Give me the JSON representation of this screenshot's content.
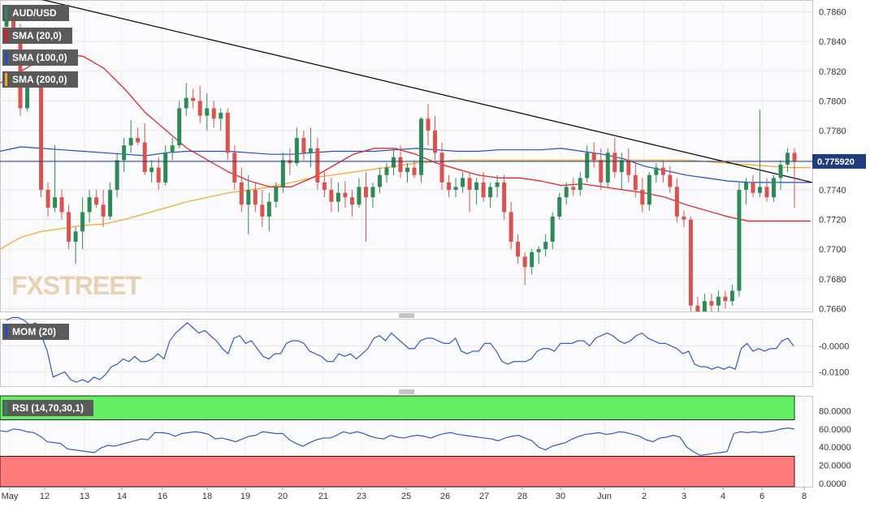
{
  "instrument": "AUD/USD",
  "watermark": "FXSTREET",
  "colors": {
    "up": "#2e8b57",
    "down": "#d9534f",
    "sma20": "#e8161b",
    "sma100": "#1f4fbf",
    "sma200": "#f5a623",
    "trendline": "#000000",
    "momentum": "#1f4fbf",
    "rsi": "#1f4fbf",
    "rsi_overbought_zone": "#64ee64",
    "rsi_oversold_zone": "#ff7a7a",
    "price_tag": "#1f3d7a"
  },
  "main_panel": {
    "indicators": [
      {
        "label": "SMA (20,0)",
        "color": "#e8161b"
      },
      {
        "label": "SMA (100,0)",
        "color": "#1f4fbf"
      },
      {
        "label": "SMA (200,0)",
        "color": "#f5a623"
      }
    ],
    "price_tag": "0.775920"
  },
  "mom_panel": {
    "label": "MOM (20)"
  },
  "rsi_panel": {
    "label": "RSI (14,70,30,1)"
  },
  "chart_data": [
    {
      "type": "candlestick",
      "title": "AUD/USD",
      "y_ticks": [
        "0.7860",
        "0.7840",
        "0.7820",
        "0.7800",
        "0.7780",
        "0.7760",
        "0.7740",
        "0.7720",
        "0.7700",
        "0.7680",
        "0.7660"
      ],
      "ylim": [
        0.7658,
        0.7868
      ],
      "x_ticks": [
        "May",
        "12",
        "13",
        "14",
        "16",
        "18",
        "19",
        "20",
        "21",
        "23",
        "25",
        "26",
        "27",
        "28",
        "30",
        "Jun",
        "2",
        "3",
        "4",
        "6",
        "8"
      ],
      "last_price": 0.77592,
      "candles": [
        [
          0.785,
          0.786,
          0.7848,
          0.7858
        ],
        [
          0.7858,
          0.7862,
          0.7844,
          0.7848
        ],
        [
          0.7848,
          0.7852,
          0.779,
          0.7795
        ],
        [
          0.7795,
          0.782,
          0.7793,
          0.7815
        ],
        [
          0.7815,
          0.7818,
          0.781,
          0.7812
        ],
        [
          0.7812,
          0.7814,
          0.7735,
          0.774
        ],
        [
          0.774,
          0.7745,
          0.7722,
          0.7728
        ],
        [
          0.7728,
          0.777,
          0.7725,
          0.7735
        ],
        [
          0.7735,
          0.774,
          0.772,
          0.7725
        ],
        [
          0.7725,
          0.773,
          0.77,
          0.7705
        ],
        [
          0.7705,
          0.7715,
          0.769,
          0.7712
        ],
        [
          0.7712,
          0.7735,
          0.77,
          0.7725
        ],
        [
          0.7725,
          0.774,
          0.7718,
          0.7735
        ],
        [
          0.7735,
          0.774,
          0.7728,
          0.773
        ],
        [
          0.773,
          0.774,
          0.7715,
          0.7722
        ],
        [
          0.7722,
          0.7745,
          0.772,
          0.774
        ],
        [
          0.774,
          0.7765,
          0.7735,
          0.776
        ],
        [
          0.776,
          0.7775,
          0.7752,
          0.777
        ],
        [
          0.777,
          0.7787,
          0.7765,
          0.7775
        ],
        [
          0.7775,
          0.7782,
          0.777,
          0.7772
        ],
        [
          0.7772,
          0.7785,
          0.775,
          0.7752
        ],
        [
          0.7752,
          0.776,
          0.7745,
          0.7755
        ],
        [
          0.7755,
          0.7762,
          0.774,
          0.7745
        ],
        [
          0.7745,
          0.777,
          0.7743,
          0.7765
        ],
        [
          0.7765,
          0.7775,
          0.776,
          0.777
        ],
        [
          0.777,
          0.78,
          0.7768,
          0.7795
        ],
        [
          0.7795,
          0.7812,
          0.779,
          0.7802
        ],
        [
          0.7802,
          0.7808,
          0.7795,
          0.78
        ],
        [
          0.78,
          0.781,
          0.7785,
          0.779
        ],
        [
          0.779,
          0.7805,
          0.778,
          0.7795
        ],
        [
          0.7795,
          0.78,
          0.7782,
          0.7788
        ],
        [
          0.7788,
          0.7795,
          0.778,
          0.7792
        ],
        [
          0.7792,
          0.7795,
          0.776,
          0.7765
        ],
        [
          0.7765,
          0.777,
          0.774,
          0.7745
        ],
        [
          0.7745,
          0.7755,
          0.7725,
          0.773
        ],
        [
          0.773,
          0.775,
          0.771,
          0.774
        ],
        [
          0.774,
          0.7745,
          0.7725,
          0.773
        ],
        [
          0.773,
          0.774,
          0.7715,
          0.7722
        ],
        [
          0.7722,
          0.7738,
          0.7712,
          0.7732
        ],
        [
          0.7732,
          0.7745,
          0.7728,
          0.7742
        ],
        [
          0.7742,
          0.7765,
          0.7738,
          0.776
        ],
        [
          0.776,
          0.7768,
          0.775,
          0.7758
        ],
        [
          0.7758,
          0.7782,
          0.7756,
          0.7775
        ],
        [
          0.7775,
          0.778,
          0.776,
          0.7765
        ],
        [
          0.7765,
          0.7782,
          0.7755,
          0.7768
        ],
        [
          0.7768,
          0.7775,
          0.774,
          0.7745
        ],
        [
          0.7745,
          0.7752,
          0.7735,
          0.774
        ],
        [
          0.774,
          0.7748,
          0.7725,
          0.7732
        ],
        [
          0.7732,
          0.7745,
          0.7725,
          0.7738
        ],
        [
          0.7738,
          0.7746,
          0.7728,
          0.7735
        ],
        [
          0.7735,
          0.774,
          0.7722,
          0.773
        ],
        [
          0.773,
          0.7748,
          0.7728,
          0.7742
        ],
        [
          0.7742,
          0.7752,
          0.7705,
          0.7735
        ],
        [
          0.7735,
          0.7745,
          0.7728,
          0.7742
        ],
        [
          0.7742,
          0.7755,
          0.7738,
          0.775
        ],
        [
          0.775,
          0.7758,
          0.7745,
          0.7755
        ],
        [
          0.7755,
          0.7768,
          0.775,
          0.7762
        ],
        [
          0.7762,
          0.777,
          0.7748,
          0.7752
        ],
        [
          0.7752,
          0.7758,
          0.7745,
          0.7755
        ],
        [
          0.7755,
          0.776,
          0.7748,
          0.775
        ],
        [
          0.775,
          0.7789,
          0.7745,
          0.7788
        ],
        [
          0.7788,
          0.7798,
          0.777,
          0.778
        ],
        [
          0.778,
          0.779,
          0.776,
          0.7765
        ],
        [
          0.7765,
          0.7772,
          0.774,
          0.7745
        ],
        [
          0.7745,
          0.775,
          0.7735,
          0.774
        ],
        [
          0.774,
          0.7748,
          0.7735,
          0.7742
        ],
        [
          0.7742,
          0.7752,
          0.7738,
          0.7748
        ],
        [
          0.7748,
          0.7752,
          0.7725,
          0.774
        ],
        [
          0.774,
          0.7748,
          0.773,
          0.7745
        ],
        [
          0.7745,
          0.7752,
          0.7732,
          0.7735
        ],
        [
          0.7735,
          0.7745,
          0.7728,
          0.7742
        ],
        [
          0.7742,
          0.775,
          0.7735,
          0.7745
        ],
        [
          0.7745,
          0.775,
          0.772,
          0.7725
        ],
        [
          0.7725,
          0.7732,
          0.77,
          0.7705
        ],
        [
          0.7705,
          0.771,
          0.769,
          0.7695
        ],
        [
          0.7695,
          0.7698,
          0.7676,
          0.7688
        ],
        [
          0.7688,
          0.77,
          0.7683,
          0.7698
        ],
        [
          0.7698,
          0.7702,
          0.769,
          0.77
        ],
        [
          0.77,
          0.771,
          0.7695,
          0.7705
        ],
        [
          0.7705,
          0.7725,
          0.77,
          0.7722
        ],
        [
          0.7722,
          0.7738,
          0.772,
          0.7735
        ],
        [
          0.7735,
          0.7745,
          0.773,
          0.7742
        ],
        [
          0.7742,
          0.7748,
          0.7736,
          0.774
        ],
        [
          0.774,
          0.7752,
          0.7736,
          0.7748
        ],
        [
          0.7748,
          0.777,
          0.7745,
          0.7765
        ],
        [
          0.7765,
          0.7772,
          0.7755,
          0.776
        ],
        [
          0.776,
          0.7768,
          0.774,
          0.7745
        ],
        [
          0.7745,
          0.7768,
          0.7742,
          0.7765
        ],
        [
          0.7765,
          0.7775,
          0.7748,
          0.7752
        ],
        [
          0.7752,
          0.7765,
          0.774,
          0.776
        ],
        [
          0.776,
          0.7768,
          0.7745,
          0.775
        ],
        [
          0.775,
          0.7758,
          0.7735,
          0.774
        ],
        [
          0.774,
          0.7748,
          0.7725,
          0.773
        ],
        [
          0.773,
          0.7752,
          0.7726,
          0.775
        ],
        [
          0.775,
          0.7758,
          0.7745,
          0.7755
        ],
        [
          0.7755,
          0.776,
          0.7745,
          0.775
        ],
        [
          0.775,
          0.7756,
          0.7738,
          0.7742
        ],
        [
          0.7742,
          0.7748,
          0.7718,
          0.7722
        ],
        [
          0.7722,
          0.7726,
          0.7715,
          0.772
        ],
        [
          0.772,
          0.7722,
          0.7655,
          0.7662
        ],
        [
          0.7662,
          0.7668,
          0.7655,
          0.7658
        ],
        [
          0.7658,
          0.767,
          0.7655,
          0.7665
        ],
        [
          0.7665,
          0.767,
          0.7658,
          0.7662
        ],
        [
          0.7662,
          0.7672,
          0.7658,
          0.7668
        ],
        [
          0.7668,
          0.7672,
          0.766,
          0.7665
        ],
        [
          0.7665,
          0.7676,
          0.7662,
          0.7672
        ],
        [
          0.7672,
          0.7745,
          0.7668,
          0.774
        ],
        [
          0.774,
          0.7748,
          0.773,
          0.7745
        ],
        [
          0.7745,
          0.775,
          0.7735,
          0.7738
        ],
        [
          0.7738,
          0.7794,
          0.7735,
          0.7742
        ],
        [
          0.7742,
          0.7748,
          0.7732,
          0.7735
        ],
        [
          0.7735,
          0.775,
          0.7732,
          0.7748
        ],
        [
          0.7748,
          0.776,
          0.774,
          0.7757
        ],
        [
          0.7757,
          0.7768,
          0.7752,
          0.7765
        ],
        [
          0.7765,
          0.7768,
          0.7728,
          0.7759
        ]
      ],
      "sma20": [
        0.7812,
        0.782,
        0.7828,
        0.7832,
        0.783,
        0.7822,
        0.7808,
        0.7792,
        0.778,
        0.7768,
        0.776,
        0.7752,
        0.7746,
        0.7742,
        0.7742,
        0.7748,
        0.7756,
        0.7764,
        0.7768,
        0.7768,
        0.7764,
        0.7758,
        0.7754,
        0.775,
        0.7748,
        0.7748,
        0.7746,
        0.7743,
        0.7744,
        0.7742,
        0.774,
        0.7738,
        0.7735,
        0.773,
        0.7726,
        0.7722,
        0.7719,
        0.7719,
        0.7719,
        0.7719
      ],
      "sma100": [
        0.7766,
        0.7769,
        0.7768,
        0.7767,
        0.7766,
        0.7765,
        0.7764,
        0.7763,
        0.7765,
        0.7766,
        0.7766,
        0.7766,
        0.7765,
        0.7764,
        0.7764,
        0.7765,
        0.7766,
        0.7766,
        0.7766,
        0.7767,
        0.7768,
        0.7767,
        0.7766,
        0.7766,
        0.7767,
        0.7767,
        0.7767,
        0.7768,
        0.7766,
        0.7764,
        0.7761,
        0.7756,
        0.7753,
        0.775,
        0.7748,
        0.7746,
        0.7745,
        0.7745,
        0.7745,
        0.7745
      ],
      "sma200": [
        0.77,
        0.7708,
        0.7712,
        0.7714,
        0.7716,
        0.7717,
        0.772,
        0.7724,
        0.7728,
        0.7732,
        0.7735,
        0.7738,
        0.774,
        0.7742,
        0.7745,
        0.7748,
        0.775,
        0.7752,
        0.7754,
        0.7756,
        0.7758,
        0.7759,
        0.776,
        0.776,
        0.776,
        0.776,
        0.776,
        0.776,
        0.776,
        0.776,
        0.776,
        0.776,
        0.776,
        0.776,
        0.7759,
        0.7758,
        0.7757,
        0.7756,
        0.7755,
        0.7755
      ],
      "trendline": [
        [
          0,
          0.7875
        ],
        [
          1,
          0.7745
        ]
      ]
    },
    {
      "type": "line",
      "title": "MOM (20)",
      "y_ticks": [
        "-0.0000",
        "-0.0100"
      ],
      "ylim": [
        -0.0155,
        0.0105
      ],
      "series": [
        {
          "name": "MOM (20)",
          "values": [
            0.01,
            0.011,
            0.011,
            0.01,
            0.008,
            0.009,
            0.004,
            -0.002,
            -0.012,
            -0.011,
            -0.01,
            -0.013,
            -0.014,
            -0.013,
            -0.014,
            -0.012,
            -0.013,
            -0.011,
            -0.008,
            -0.007,
            -0.005,
            -0.006,
            -0.004,
            -0.006,
            -0.006,
            -0.005,
            -0.003,
            -0.005,
            0.002,
            0.005,
            0.007,
            0.009,
            0.007,
            0.005,
            0.006,
            0.004,
            0.002,
            -0.001,
            -0.003,
            0.003,
            0.004,
            0.001,
            0.002,
            -0.001,
            -0.004,
            -0.005,
            -0.003,
            -0.003,
            0.001,
            0.002,
            0.002,
            0.001,
            -0.002,
            -0.003,
            -0.004,
            -0.006,
            -0.006,
            -0.003,
            -0.004,
            -0.003,
            -0.005,
            -0.003,
            -0.001,
            0.003,
            0.004,
            0.002,
            0.005,
            0.003,
            0.001,
            -0.001,
            -0.001,
            0.002,
            0.003,
            0.003,
            0.002,
            0.001,
            0.001,
            0.003,
            -0.002,
            -0.003,
            -0.002,
            -0.002,
            0.001,
            0.001,
            -0.002,
            -0.006,
            -0.007,
            -0.006,
            -0.006,
            -0.006,
            -0.005,
            -0.002,
            -0.001,
            -0.001,
            -0.002,
            0.001,
            0.001,
            0.001,
            0.002,
            0.002,
            0.0,
            0.003,
            0.004,
            0.005,
            0.004,
            0.002,
            0.001,
            0.002,
            0.004,
            0.005,
            0.003,
            0.002,
            0.001,
            0.001,
            0.0,
            -0.001,
            -0.003,
            -0.002,
            -0.007,
            -0.008,
            -0.008,
            -0.009,
            -0.008,
            -0.009,
            -0.008,
            -0.009,
            -0.001,
            0.001,
            -0.002,
            -0.001,
            -0.002,
            -0.001,
            -0.001,
            0.002,
            0.003,
            0.0
          ]
        }
      ]
    },
    {
      "type": "line",
      "title": "RSI (14,70,30,1)",
      "y_ticks": [
        "80.0000",
        "60.0000",
        "40.0000",
        "20.0000",
        "0.0000"
      ],
      "ylim": [
        0,
        100
      ],
      "overbought": 70,
      "oversold": 30,
      "series": [
        {
          "name": "RSI (14,70,30,1)",
          "values": [
            58,
            57,
            60,
            59,
            57,
            56,
            52,
            46,
            45,
            44,
            38,
            37,
            36,
            35,
            34,
            39,
            42,
            41,
            43,
            45,
            47,
            49,
            48,
            56,
            56,
            55,
            52,
            55,
            56,
            57,
            56,
            54,
            49,
            50,
            48,
            46,
            49,
            52,
            53,
            57,
            56,
            55,
            55,
            48,
            44,
            41,
            45,
            48,
            50,
            50,
            53,
            57,
            55,
            57,
            55,
            52,
            50,
            49,
            53,
            51,
            50,
            52,
            53,
            52,
            50,
            53,
            55,
            56,
            54,
            53,
            52,
            51,
            50,
            49,
            47,
            50,
            52,
            53,
            50,
            47,
            40,
            37,
            41,
            43,
            45,
            49,
            52,
            54,
            55,
            56,
            54,
            55,
            57,
            56,
            54,
            52,
            48,
            46,
            50,
            51,
            53,
            51,
            40,
            35,
            31,
            32,
            33,
            34,
            35,
            55,
            57,
            56,
            57,
            56,
            57,
            58,
            60,
            61,
            60
          ]
        }
      ]
    }
  ]
}
